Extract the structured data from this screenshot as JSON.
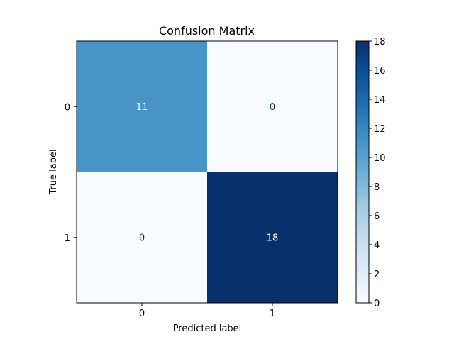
{
  "chart_data": {
    "type": "heatmap",
    "title": "Confusion Matrix",
    "xlabel": "Predicted label",
    "ylabel": "True label",
    "x_categories": [
      "0",
      "1"
    ],
    "y_categories": [
      "0",
      "1"
    ],
    "values": [
      [
        11,
        0
      ],
      [
        0,
        18
      ]
    ],
    "colormap": "Blues",
    "colormap_stops": [
      "#f7fbff",
      "#deebf7",
      "#c6dbef",
      "#9ecae1",
      "#6baed6",
      "#4292c6",
      "#2171b5",
      "#08519c",
      "#08306b"
    ],
    "colorbar": {
      "range": [
        0,
        18
      ],
      "ticks": [
        "0",
        "2",
        "4",
        "6",
        "8",
        "10",
        "12",
        "14",
        "16",
        "18"
      ]
    },
    "grid": false
  }
}
